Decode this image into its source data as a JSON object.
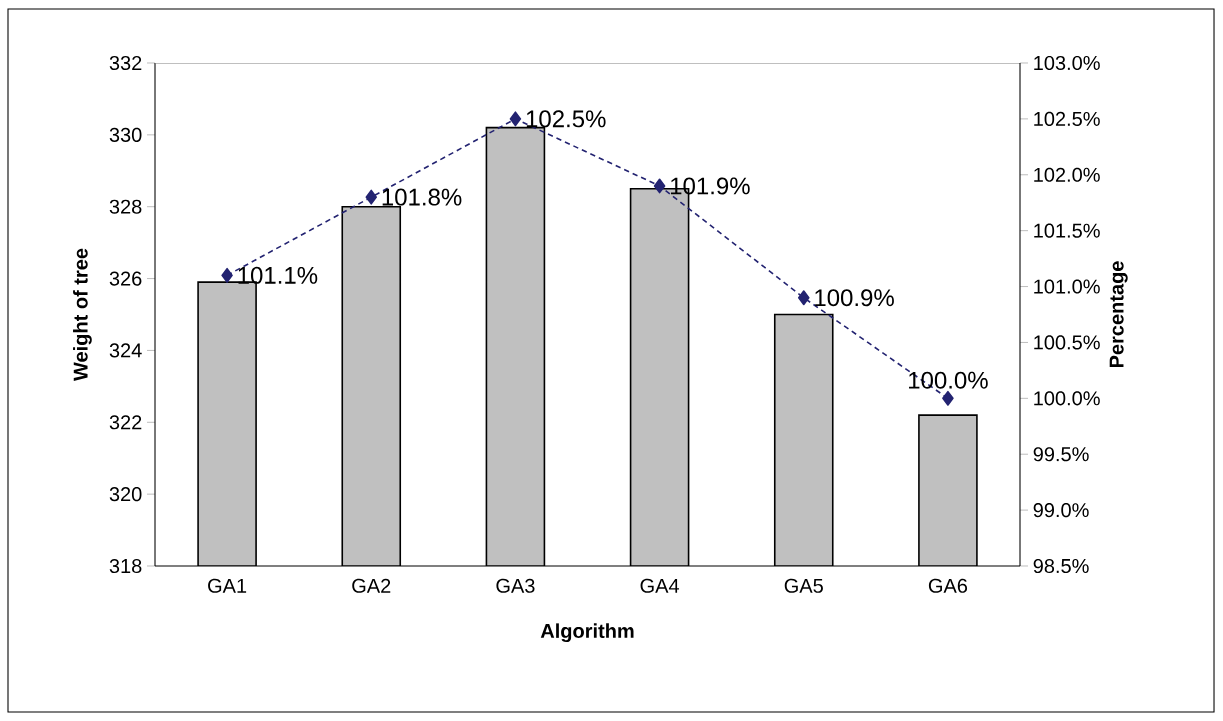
{
  "chart_data": {
    "type": "bar",
    "xlabel": "Algorithm",
    "ylabel": "Weight of tree",
    "y2label": "Percentage",
    "categories": [
      "GA1",
      "GA2",
      "GA3",
      "GA4",
      "GA5",
      "GA6"
    ],
    "ylim": [
      318,
      332
    ],
    "yticks": [
      318,
      320,
      322,
      324,
      326,
      328,
      330,
      332
    ],
    "y2lim": [
      98.5,
      103
    ],
    "y2ticks": [
      {
        "value": 98.5,
        "label": "98.5%"
      },
      {
        "value": 99,
        "label": "99.0%"
      },
      {
        "value": 99.5,
        "label": "99.5%"
      },
      {
        "value": 100,
        "label": "100.0%"
      },
      {
        "value": 100.5,
        "label": "100.5%"
      },
      {
        "value": 101,
        "label": "101.0%"
      },
      {
        "value": 101.5,
        "label": "101.5%"
      },
      {
        "value": 102,
        "label": "102.0%"
      },
      {
        "value": 102.5,
        "label": "102.5%"
      },
      {
        "value": 103,
        "label": "103.0%"
      }
    ],
    "series": [
      {
        "color": "#c0c0c0",
        "values": [
          325.9,
          328.0,
          330.2,
          328.5,
          325.0,
          322.2
        ]
      },
      {
        "type": "line",
        "axis": "y2",
        "color": "#232371",
        "marker": "diamond",
        "line_style": "dashed",
        "values": [
          101.1,
          101.8,
          102.5,
          101.9,
          100.9,
          100.0
        ],
        "value_labels": [
          "101.1%",
          "101.8%",
          "102.5%",
          "101.9%",
          "100.9%",
          "100.0%"
        ]
      }
    ]
  }
}
